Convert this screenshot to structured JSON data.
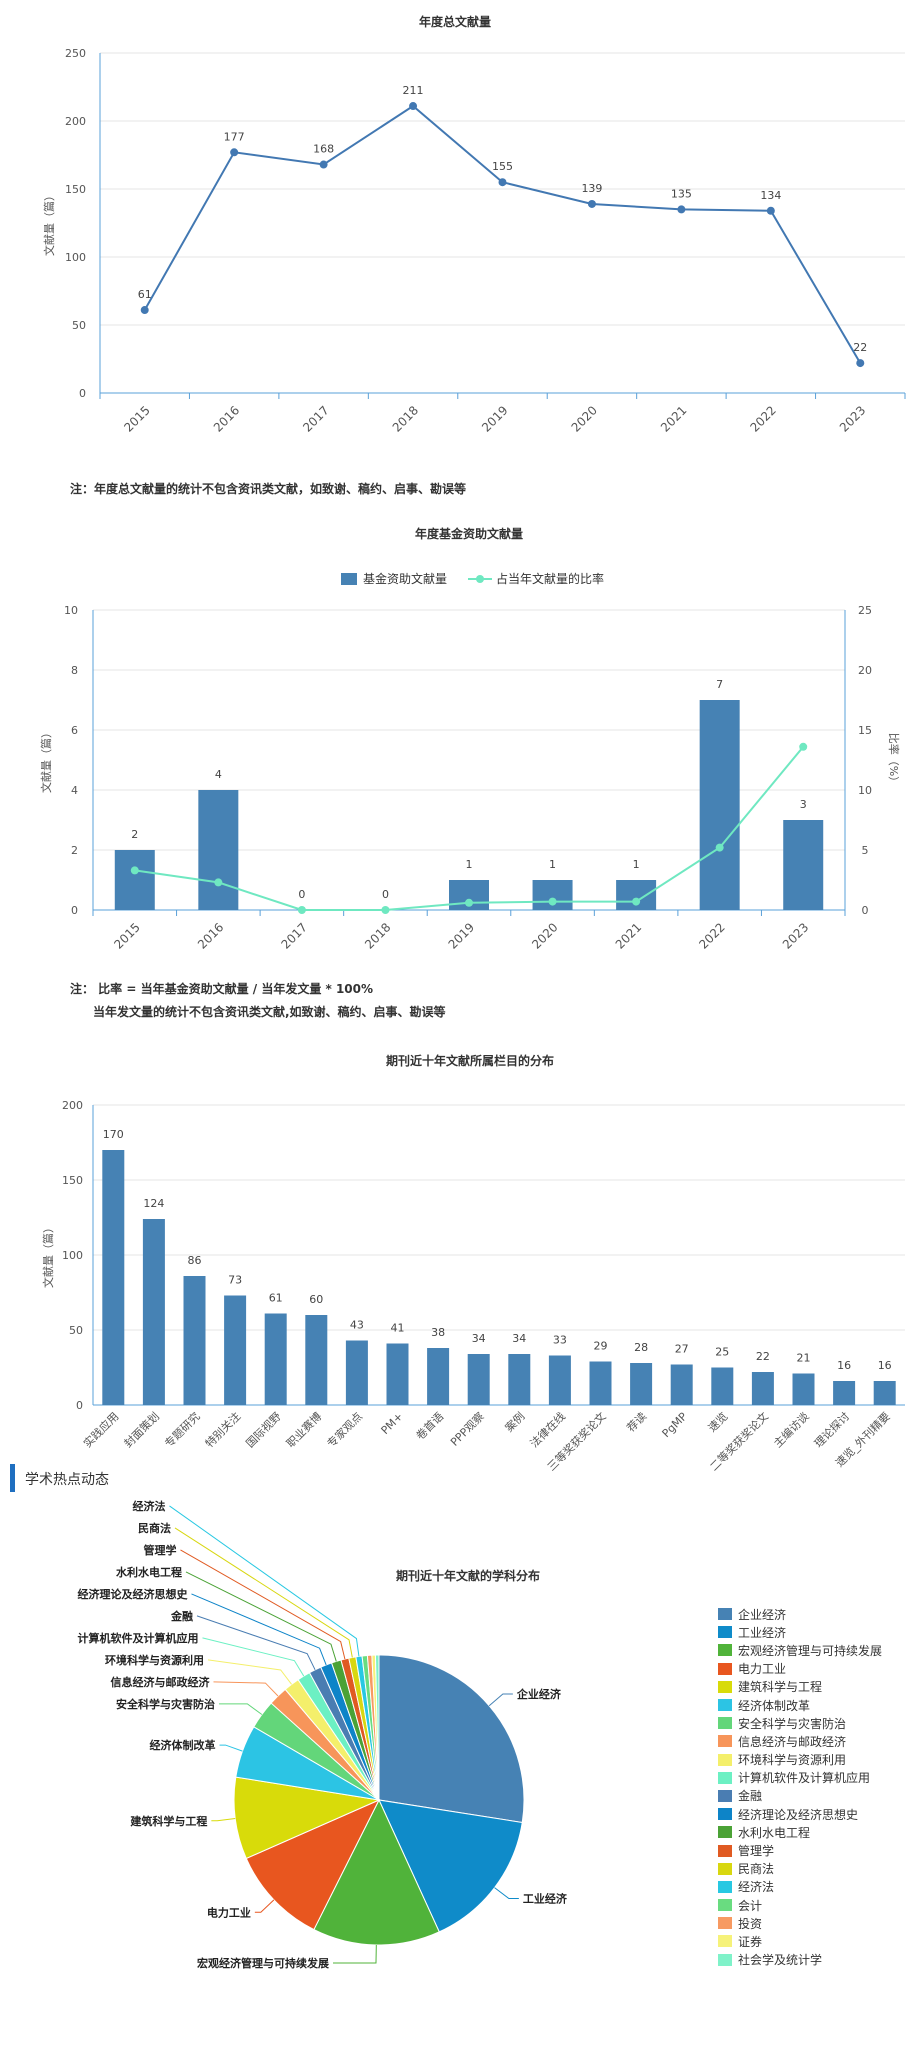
{
  "chart_data": [
    {
      "type": "line",
      "title": "年度总文献量",
      "ylabel": "文献量（篇）",
      "categories": [
        "2015",
        "2016",
        "2017",
        "2018",
        "2019",
        "2020",
        "2021",
        "2022",
        "2023"
      ],
      "values": [
        61,
        177,
        168,
        211,
        155,
        139,
        135,
        134,
        22
      ],
      "ylim": [
        0,
        250
      ],
      "yticks": [
        0,
        50,
        100,
        150,
        200,
        250
      ],
      "grid": true,
      "color": "#4278b2"
    },
    {
      "type": "bar",
      "title": "年度基金资助文献量",
      "ylabel": "文献量（篇）",
      "y2label": "比率（%）",
      "categories": [
        "2015",
        "2016",
        "2017",
        "2018",
        "2019",
        "2020",
        "2021",
        "2022",
        "2023"
      ],
      "series": [
        {
          "name": "基金资助文献量",
          "type": "bar",
          "values": [
            2,
            4,
            0,
            0,
            1,
            1,
            1,
            7,
            3
          ],
          "color": "#4682b4"
        },
        {
          "name": "占当年文献量的比率",
          "type": "line",
          "axis": "right",
          "values": [
            3.3,
            2.3,
            0,
            0,
            0.6,
            0.7,
            0.7,
            5.2,
            13.6
          ],
          "color": "#6fe8c1"
        }
      ],
      "ylim": [
        0,
        10
      ],
      "yticks": [
        0,
        2,
        4,
        6,
        8,
        10
      ],
      "y2lim": [
        0,
        25
      ],
      "y2ticks": [
        0,
        5,
        10,
        15,
        20,
        25
      ],
      "legend": "top-center",
      "grid": true
    },
    {
      "type": "bar",
      "title": "期刊近十年文献所属栏目的分布",
      "ylabel": "文献量（篇）",
      "categories": [
        "实践应用",
        "封面策划",
        "专题研究",
        "特别关注",
        "国际视野",
        "职业赛博",
        "专家观点",
        "PM+",
        "卷首语",
        "PPP观察",
        "案例",
        "法律在线",
        "三等奖获奖论文",
        "荐读",
        "PgMP",
        "速览",
        "二等奖获奖论文",
        "主编访谈",
        "理论探讨",
        "速览_外刊精要"
      ],
      "values": [
        170,
        124,
        86,
        73,
        61,
        60,
        43,
        41,
        38,
        34,
        34,
        33,
        29,
        28,
        27,
        25,
        22,
        21,
        16,
        16
      ],
      "ylim": [
        0,
        200
      ],
      "yticks": [
        0,
        50,
        100,
        150,
        200
      ],
      "grid": true,
      "color": "#4682b4"
    },
    {
      "type": "pie",
      "title": "期刊近十年文献的学科分布",
      "legend": "right",
      "slices": [
        {
          "label": "企业经济",
          "value": 28.0,
          "color": "#4682b4"
        },
        {
          "label": "工业经济",
          "value": 16.0,
          "color": "#0f8bc9"
        },
        {
          "label": "宏观经济管理与可持续发展",
          "value": 14.5,
          "color": "#50b33a"
        },
        {
          "label": "电力工业",
          "value": 11.2,
          "color": "#e8561f"
        },
        {
          "label": "建筑科学与工程",
          "value": 9.3,
          "color": "#d8db0a"
        },
        {
          "label": "经济体制改革",
          "value": 6.0,
          "color": "#2cc4e4"
        },
        {
          "label": "安全科学与灾害防治",
          "value": 3.3,
          "color": "#63d67a"
        },
        {
          "label": "信息经济与邮政经济",
          "value": 2.2,
          "color": "#f7955a"
        },
        {
          "label": "环境科学与资源利用",
          "value": 1.8,
          "color": "#f4ef6b"
        },
        {
          "label": "计算机软件及计算机应用",
          "value": 1.5,
          "color": "#6cf0c3"
        },
        {
          "label": "金融",
          "value": 1.4,
          "color": "#4a7db2"
        },
        {
          "label": "经济理论及经济思想史",
          "value": 1.3,
          "color": "#0d84c8"
        },
        {
          "label": "水利水电工程",
          "value": 1.1,
          "color": "#4ba236"
        },
        {
          "label": "管理学",
          "value": 0.9,
          "color": "#e05a22"
        },
        {
          "label": "民商法",
          "value": 0.8,
          "color": "#d8d710"
        },
        {
          "label": "经济法",
          "value": 0.7,
          "color": "#28c8e2"
        },
        {
          "label": "会计",
          "value": 0.6,
          "color": "#69dc80"
        },
        {
          "label": "投资",
          "value": 0.5,
          "color": "#f79a62"
        },
        {
          "label": "证券",
          "value": 0.4,
          "color": "#f6f27a"
        },
        {
          "label": "社会学及统计学",
          "value": 0.4,
          "color": "#7ff2c9"
        }
      ],
      "outer_labels": [
        "企业经济",
        "工业经济",
        "宏观经济管理与可持续发展",
        "电力工业",
        "建筑科学与工程",
        "经济体制改革",
        "安全科学与灾害防治",
        "信息经济与邮政经济",
        "环境科学与资源利用",
        "计算机软件及计算机应用",
        "金融",
        "经济理论及经济思想史",
        "水利水电工程",
        "管理学",
        "民商法",
        "经济法"
      ]
    }
  ],
  "notes": {
    "chart1": "注：年度总文献量的统计不包含资讯类文献，如致谢、稿约、启事、勘误等",
    "chart2_line1": "注： 比率 = 当年基金资助文献量 / 当年发文量 * 100%",
    "chart2_line2": "当年发文量的统计不包含资讯类文献,如致谢、稿约、启事、勘误等"
  },
  "section": {
    "title": "学术热点动态",
    "accent": "#1f6fc0"
  }
}
